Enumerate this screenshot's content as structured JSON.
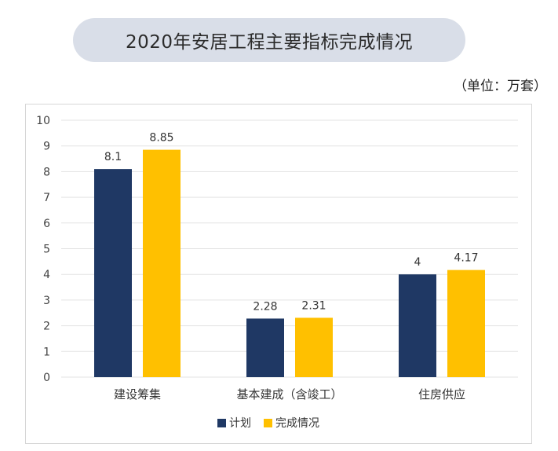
{
  "header": {
    "title": "2020年安居工程主要指标完成情况",
    "unit": "（单位：万套）"
  },
  "colors": {
    "plan": "#1f3864",
    "done": "#ffc000",
    "grid": "#e3e3e3"
  },
  "chart_data": {
    "type": "bar",
    "categories": [
      "建设筹集",
      "基本建成（含竣工）",
      "住房供应"
    ],
    "series": [
      {
        "name": "计划",
        "values": [
          8.1,
          2.28,
          4
        ]
      },
      {
        "name": "完成情况",
        "values": [
          8.85,
          2.31,
          4.17
        ]
      }
    ],
    "data_labels": [
      [
        "8.1",
        "2.28",
        "4"
      ],
      [
        "8.85",
        "2.31",
        "4.17"
      ]
    ],
    "ylim": [
      0,
      10
    ],
    "yticks": [
      0,
      1,
      2,
      3,
      4,
      5,
      6,
      7,
      8,
      9,
      10
    ],
    "grid": true,
    "legend": "bottom",
    "title": "",
    "xlabel": "",
    "ylabel": ""
  }
}
